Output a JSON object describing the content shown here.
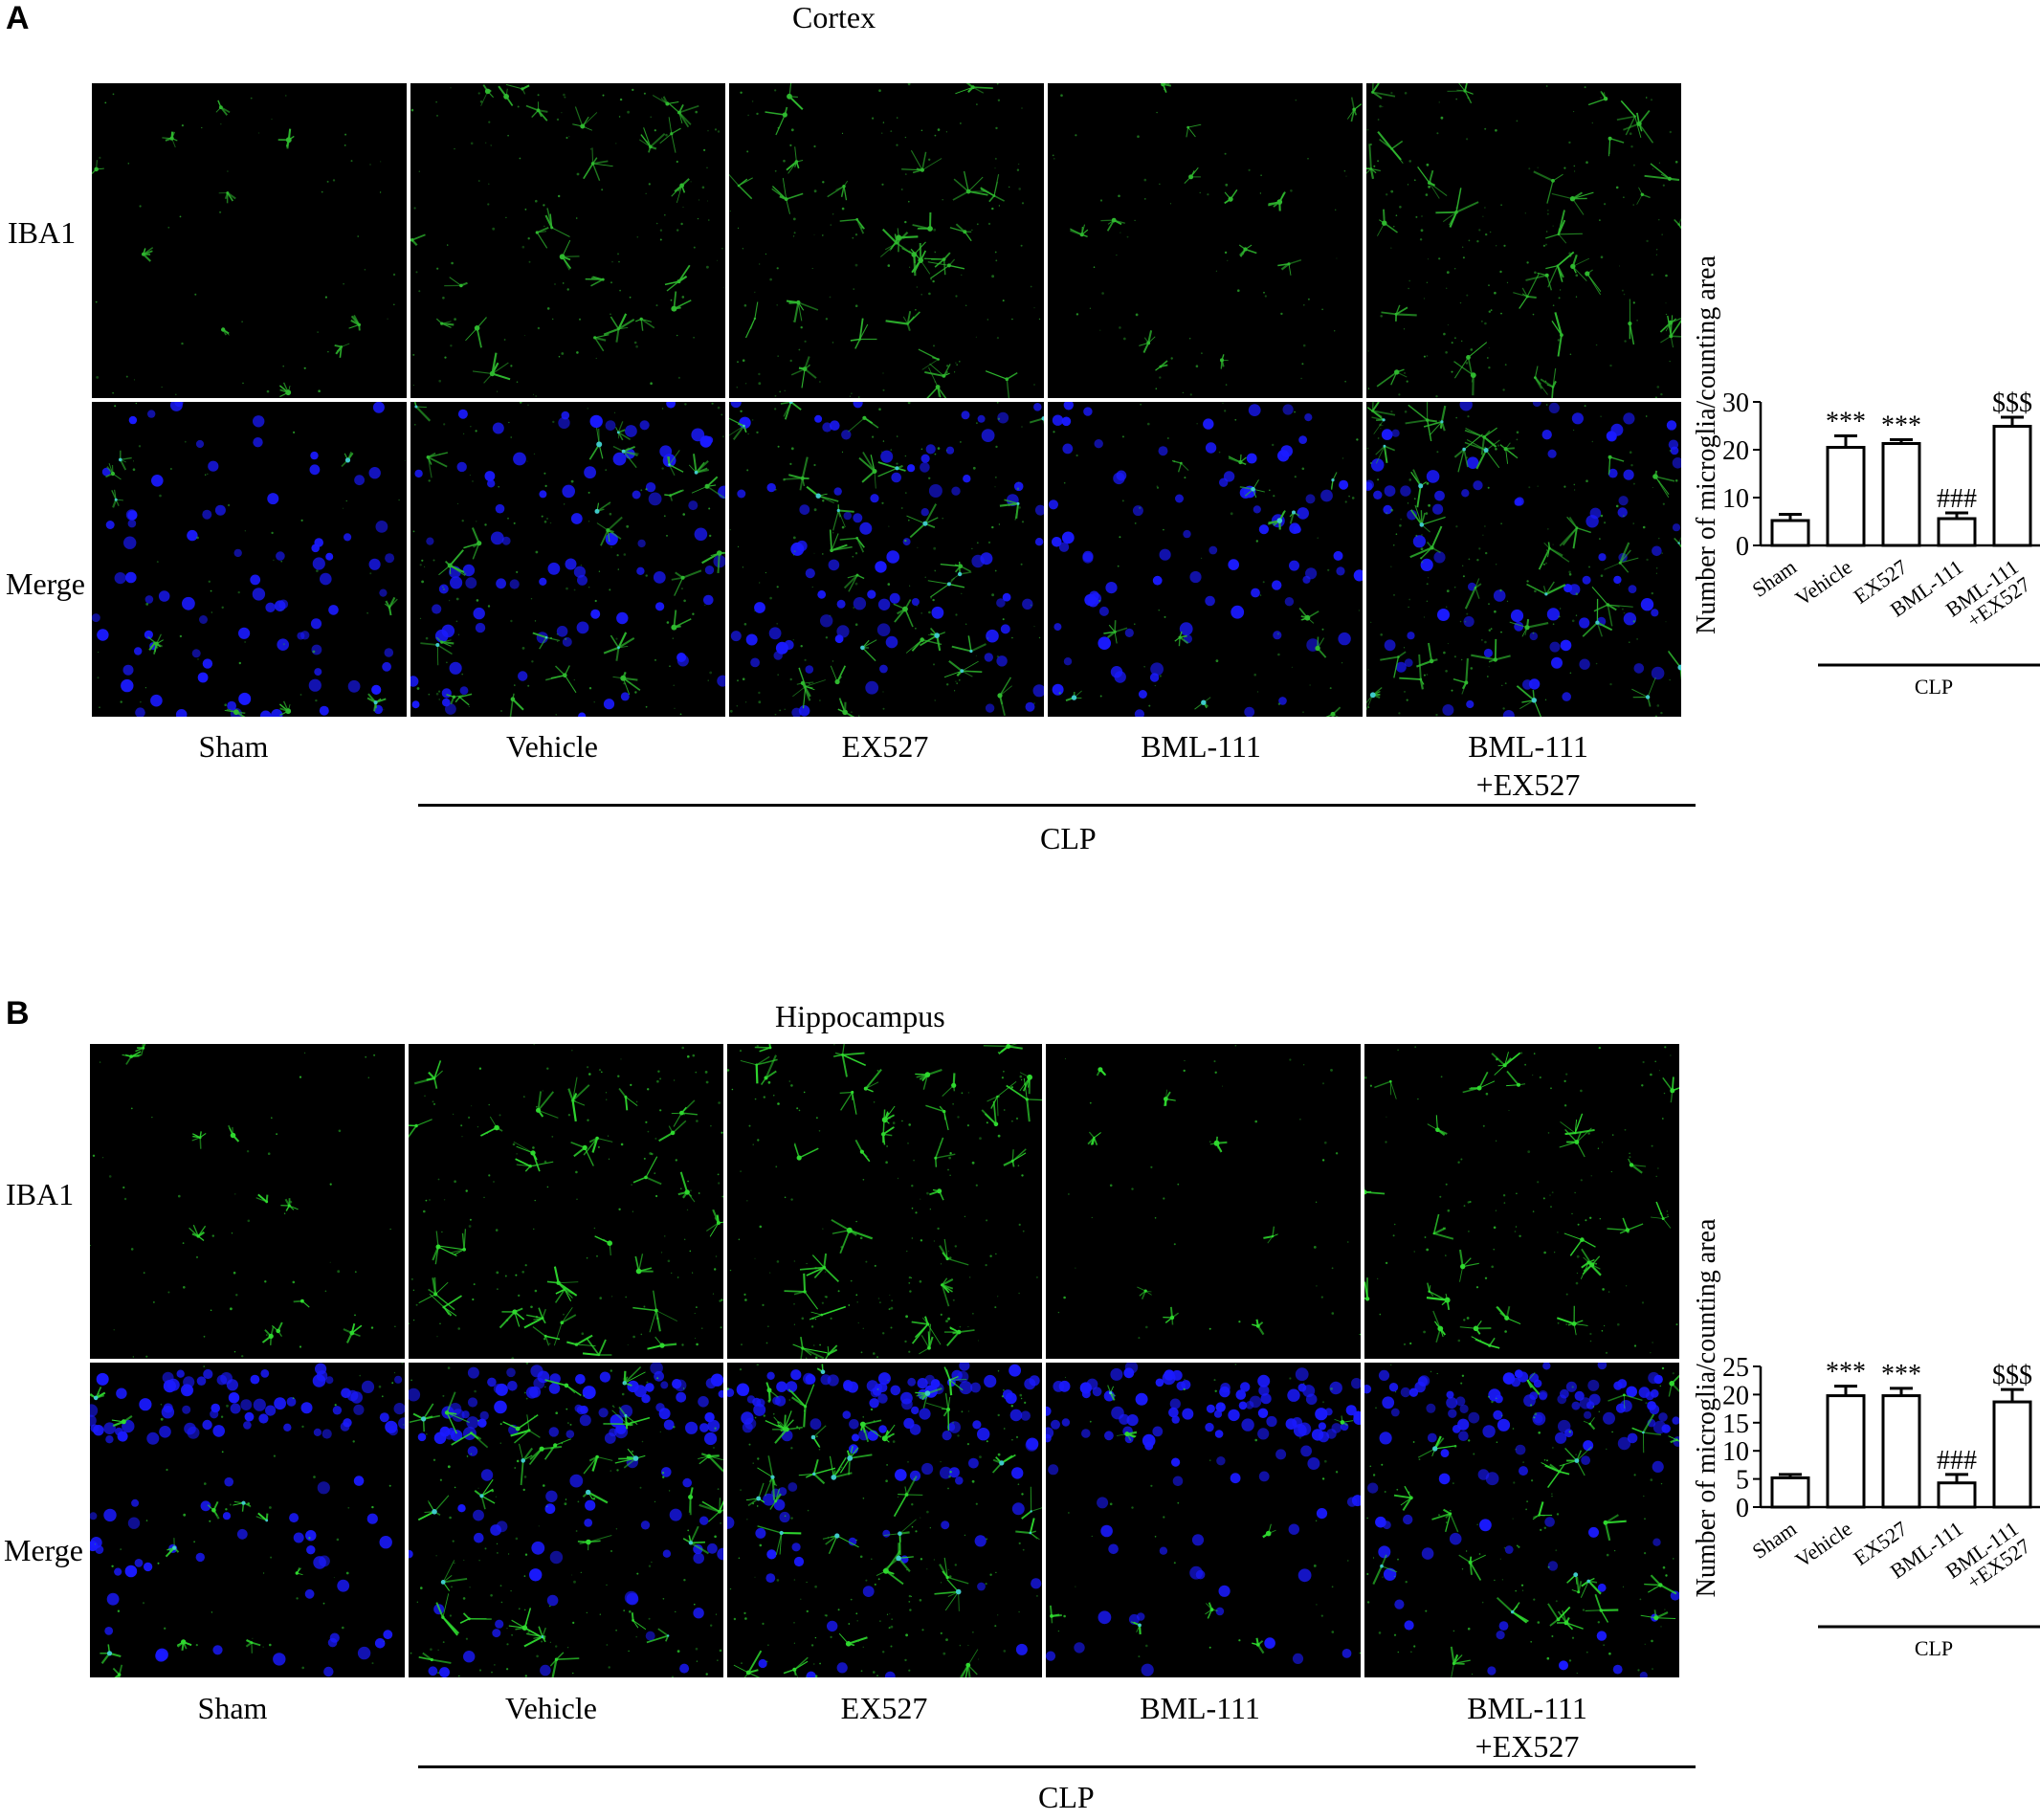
{
  "groups": [
    "Sham",
    "Vehicle",
    "EX527",
    "BML-111",
    "BML-111 +EX527"
  ],
  "groups_line1": [
    "Sham",
    "Vehicle",
    "EX527",
    "BML-111",
    "BML-111"
  ],
  "groups_line2": [
    "",
    "",
    "",
    "",
    "+EX527"
  ],
  "chart_group_line2": [
    "",
    "",
    "",
    "",
    "+EX527"
  ],
  "row_labels": {
    "iba1": "IBA1",
    "merge": "Merge"
  },
  "clp_label": "CLP",
  "panelA": {
    "letter": "A",
    "region": "Cortex",
    "tile_colors": {
      "stain": "#2fb82f",
      "nuclei": "#1a1aff"
    }
  },
  "panelB": {
    "letter": "B",
    "region": "Hippocampus",
    "tile_colors": {
      "stain": "#2fd82f",
      "nuclei": "#1a1aff"
    }
  },
  "chart_data": [
    {
      "type": "bar",
      "panel": "A",
      "categories": [
        "Sham",
        "Vehicle",
        "EX527",
        "BML-111",
        "BML-111 +EX527"
      ],
      "values": [
        5.2,
        20.5,
        21.3,
        5.6,
        24.9
      ],
      "errors": [
        1.3,
        2.4,
        0.8,
        1.2,
        1.9
      ],
      "annotations": [
        "",
        "***",
        "***",
        "###",
        "$$$"
      ],
      "ylabel": "Number of microglia/counting area",
      "yticks": [
        0,
        10,
        20,
        30
      ],
      "ylim": [
        0,
        30
      ],
      "group_label": "CLP",
      "bar_fill": "#ffffff",
      "bar_stroke": "#000000"
    },
    {
      "type": "bar",
      "panel": "B",
      "categories": [
        "Sham",
        "Vehicle",
        "EX527",
        "BML-111",
        "BML-111 +EX527"
      ],
      "values": [
        5.2,
        19.8,
        19.8,
        4.3,
        18.7
      ],
      "errors": [
        0.6,
        1.7,
        1.3,
        1.5,
        2.2
      ],
      "annotations": [
        "",
        "***",
        "***",
        "###",
        "$$$"
      ],
      "ylabel": "Number of microglia/counting area",
      "yticks": [
        0,
        5,
        10,
        15,
        20,
        25
      ],
      "ylim": [
        0,
        25
      ],
      "group_label": "CLP",
      "bar_fill": "#ffffff",
      "bar_stroke": "#000000"
    }
  ]
}
